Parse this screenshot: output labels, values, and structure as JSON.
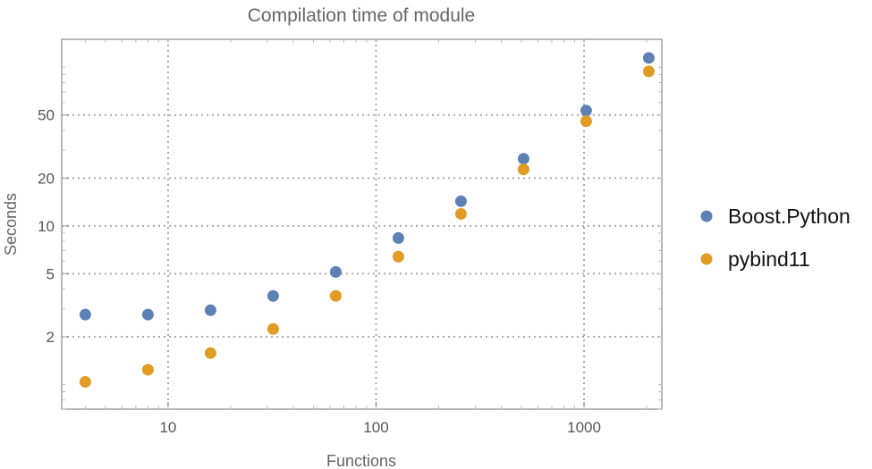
{
  "chart_data": {
    "type": "scatter",
    "title": "Compilation time of module",
    "xlabel": "Functions",
    "ylabel": "Seconds",
    "xscale": "log",
    "yscale": "log",
    "xlim": [
      3.08,
      2366
    ],
    "ylim": [
      0.7,
      150
    ],
    "grid": true,
    "legend_position": "right",
    "x_ticks": [
      10,
      100,
      1000
    ],
    "x_tick_labels": [
      "10",
      "100",
      "1000"
    ],
    "y_ticks": [
      2,
      5,
      10,
      20,
      50
    ],
    "y_tick_labels": [
      "2",
      "5",
      "10",
      "20",
      "50"
    ],
    "x": [
      4,
      8,
      16,
      32,
      64,
      128,
      256,
      512,
      1024,
      2048
    ],
    "series": [
      {
        "name": "Boost.Python",
        "color": "#5e81b5",
        "values": [
          2.76,
          2.76,
          2.94,
          3.62,
          5.13,
          8.39,
          14.3,
          26.5,
          53.3,
          114.5
        ]
      },
      {
        "name": "pybind11",
        "color": "#e19c24",
        "values": [
          1.04,
          1.24,
          1.58,
          2.24,
          3.62,
          6.4,
          11.9,
          22.7,
          45.7,
          94.2
        ]
      }
    ]
  }
}
